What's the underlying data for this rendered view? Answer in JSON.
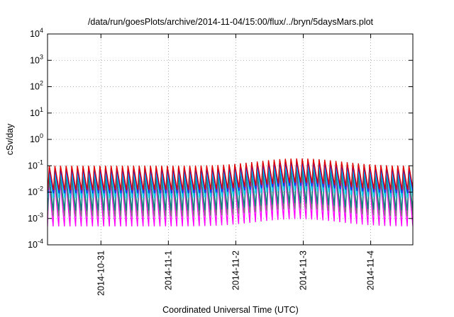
{
  "chart_data": {
    "type": "line",
    "title": "/data/run/goesPlots/archive/2014-11-04/15:00/flux/../bryn/5daysMars.plot",
    "xlabel": "Coordinated Universal Time (UTC)",
    "ylabel": "cSv/day",
    "y_scale": "log",
    "ylim": [
      0.0001,
      10000
    ],
    "xlim": [
      "2014-10-30T05:00",
      "2014-11-04T15:00"
    ],
    "grid": true,
    "legend": "none",
    "y_ticks": [
      {
        "base": "10",
        "exp": "-4"
      },
      {
        "base": "10",
        "exp": "-3"
      },
      {
        "base": "10",
        "exp": "-2"
      },
      {
        "base": "10",
        "exp": "-1"
      },
      {
        "base": "10",
        "exp": "0"
      },
      {
        "base": "10",
        "exp": "1"
      },
      {
        "base": "10",
        "exp": "2"
      },
      {
        "base": "10",
        "exp": "3"
      },
      {
        "base": "10",
        "exp": "4"
      }
    ],
    "x_ticks": [
      {
        "label": "2014-10-31",
        "at": "2014-10-31T00:00"
      },
      {
        "label": "2014-11-1",
        "at": "2014-11-01T00:00"
      },
      {
        "label": "2014-11-2",
        "at": "2014-11-02T00:00"
      },
      {
        "label": "2014-11-3",
        "at": "2014-11-03T00:00"
      },
      {
        "label": "2014-11-4",
        "at": "2014-11-04T00:00"
      }
    ],
    "cycle_hours": 2,
    "series": [
      {
        "color": "#ff00ff",
        "peak": 0.025,
        "trough": 0.0005
      },
      {
        "color": "#777777",
        "peak": 0.03,
        "trough": 0.0012
      },
      {
        "color": "#008080",
        "peak": 0.045,
        "trough": 0.002
      },
      {
        "color": "#00d0ff",
        "peak": 0.06,
        "trough": 0.006
      },
      {
        "color": "#2222ee",
        "peak": 0.08,
        "trough": 0.009
      },
      {
        "color": "#e00000",
        "peak": 0.1,
        "trough": 0.012
      }
    ]
  }
}
